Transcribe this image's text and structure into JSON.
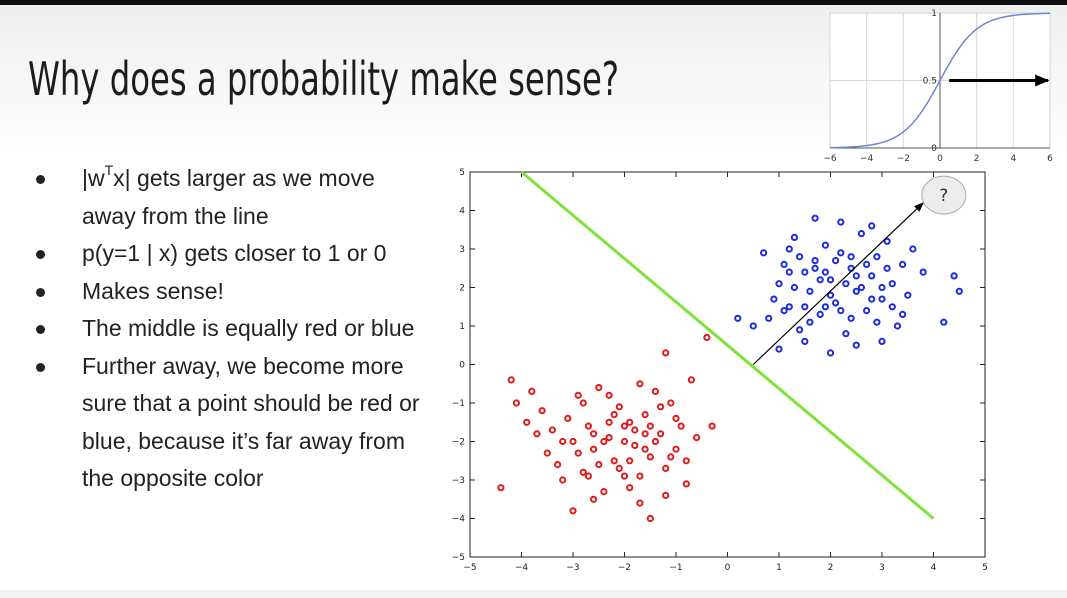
{
  "slide": {
    "title": "Why does a probability make sense?",
    "bullets": [
      {
        "pre": "|w",
        "sup": "T",
        "post": "x| gets larger as we move away from the line"
      },
      {
        "text": "p(y=1 | x) gets closer to 1 or 0"
      },
      {
        "text": "Makes sense!"
      },
      {
        "text": "The middle is equally red or blue"
      },
      {
        "text": "Further away, we become more sure that a point should be red or blue, because it’s far away from the opposite color"
      }
    ]
  },
  "chart_data": [
    {
      "type": "line",
      "x": [
        -6,
        -5,
        -4,
        -3,
        -2,
        -1.5,
        -1,
        -0.5,
        0,
        0.5,
        1,
        1.5,
        2,
        3,
        4,
        5,
        6
      ],
      "y": [
        0.0025,
        0.0067,
        0.018,
        0.047,
        0.119,
        0.182,
        0.269,
        0.378,
        0.5,
        0.622,
        0.731,
        0.818,
        0.881,
        0.953,
        0.982,
        0.993,
        0.9975
      ],
      "xlim": [
        -6,
        6
      ],
      "ylim": [
        0,
        1
      ],
      "xticks": [
        "−6",
        "−4",
        "−2",
        "0",
        "2",
        "4",
        "6"
      ],
      "yticks": [
        "0",
        "0.5",
        "1"
      ],
      "grid": true,
      "line_color": "#6f86d6",
      "annotation": {
        "type": "arrow",
        "from": [
          0.5,
          0.5
        ],
        "to": [
          5.9,
          0.5
        ],
        "color": "#000000"
      }
    },
    {
      "type": "scatter",
      "xlim": [
        -5,
        5
      ],
      "ylim": [
        -5,
        5
      ],
      "xticks": [
        "−5",
        "−4",
        "−3",
        "−2",
        "−1",
        "0",
        "1",
        "2",
        "3",
        "4",
        "5"
      ],
      "yticks": [
        "−5",
        "−4",
        "−3",
        "−2",
        "−1",
        "0",
        "1",
        "2",
        "3",
        "4",
        "5"
      ],
      "series": [
        {
          "color": "#1b2be0",
          "points": [
            [
              0.8,
              1.2
            ],
            [
              1.0,
              2.1
            ],
            [
              1.1,
              2.6
            ],
            [
              1.2,
              1.5
            ],
            [
              1.3,
              3.3
            ],
            [
              1.4,
              0.9
            ],
            [
              1.5,
              2.4
            ],
            [
              1.6,
              1.9
            ],
            [
              1.7,
              2.7
            ],
            [
              1.8,
              1.3
            ],
            [
              1.9,
              3.1
            ],
            [
              2.0,
              2.2
            ],
            [
              2.1,
              1.6
            ],
            [
              2.2,
              2.9
            ],
            [
              2.3,
              0.8
            ],
            [
              2.4,
              2.5
            ],
            [
              2.5,
              1.9
            ],
            [
              2.6,
              3.4
            ],
            [
              2.7,
              1.4
            ],
            [
              2.8,
              2.3
            ],
            [
              2.9,
              2.8
            ],
            [
              3.0,
              1.7
            ],
            [
              3.1,
              3.2
            ],
            [
              3.2,
              2.1
            ],
            [
              3.3,
              1.0
            ],
            [
              3.4,
              2.6
            ],
            [
              3.5,
              1.8
            ],
            [
              3.6,
              3.0
            ],
            [
              1.0,
              0.4
            ],
            [
              1.5,
              0.6
            ],
            [
              2.0,
              0.3
            ],
            [
              2.5,
              0.5
            ],
            [
              3.0,
              0.6
            ],
            [
              1.2,
              3.0
            ],
            [
              2.8,
              3.6
            ],
            [
              0.7,
              2.9
            ],
            [
              1.7,
              3.8
            ],
            [
              2.2,
              3.7
            ],
            [
              1.3,
              2.0
            ],
            [
              1.9,
              2.4
            ],
            [
              2.4,
              1.2
            ],
            [
              3.1,
              2.5
            ],
            [
              0.9,
              1.7
            ],
            [
              1.6,
              1.1
            ],
            [
              2.6,
              2.0
            ],
            [
              3.4,
              1.3
            ],
            [
              2.1,
              2.7
            ],
            [
              1.4,
              2.8
            ],
            [
              3.8,
              2.4
            ],
            [
              4.4,
              2.3
            ],
            [
              4.5,
              1.9
            ],
            [
              4.2,
              1.1
            ],
            [
              0.2,
              1.2
            ],
            [
              0.5,
              1.0
            ],
            [
              1.9,
              1.5
            ],
            [
              2.3,
              2.1
            ],
            [
              1.1,
              1.4
            ],
            [
              2.7,
              2.6
            ],
            [
              3.2,
              1.5
            ],
            [
              1.8,
              2.2
            ],
            [
              2.9,
              1.1
            ],
            [
              2.0,
              1.8
            ],
            [
              1.5,
              1.5
            ],
            [
              2.5,
              2.3
            ],
            [
              3.0,
              2.0
            ],
            [
              1.2,
              2.4
            ],
            [
              2.2,
              1.4
            ],
            [
              2.8,
              1.7
            ],
            [
              1.7,
              2.5
            ],
            [
              2.4,
              2.8
            ]
          ]
        },
        {
          "color": "#e01b1b",
          "points": [
            [
              -4.4,
              -3.2
            ],
            [
              -4.2,
              -0.4
            ],
            [
              -4.1,
              -1.0
            ],
            [
              -3.9,
              -1.5
            ],
            [
              -3.7,
              -1.8
            ],
            [
              -3.6,
              -1.2
            ],
            [
              -3.5,
              -2.3
            ],
            [
              -3.4,
              -1.7
            ],
            [
              -3.3,
              -2.6
            ],
            [
              -3.2,
              -3.0
            ],
            [
              -3.1,
              -1.4
            ],
            [
              -3.0,
              -2.0
            ],
            [
              -2.9,
              -0.8
            ],
            [
              -2.8,
              -2.8
            ],
            [
              -2.7,
              -1.6
            ],
            [
              -2.6,
              -2.2
            ],
            [
              -2.5,
              -0.6
            ],
            [
              -2.4,
              -3.3
            ],
            [
              -2.3,
              -1.9
            ],
            [
              -2.2,
              -2.5
            ],
            [
              -2.1,
              -1.1
            ],
            [
              -2.0,
              -2.9
            ],
            [
              -1.9,
              -1.5
            ],
            [
              -1.8,
              -2.1
            ],
            [
              -1.7,
              -3.6
            ],
            [
              -1.6,
              -1.3
            ],
            [
              -1.5,
              -2.4
            ],
            [
              -1.4,
              -0.7
            ],
            [
              -1.3,
              -1.8
            ],
            [
              -1.2,
              -2.7
            ],
            [
              -1.1,
              -1.0
            ],
            [
              -1.0,
              -2.2
            ],
            [
              -0.9,
              -1.6
            ],
            [
              -0.8,
              -3.1
            ],
            [
              -0.7,
              -0.4
            ],
            [
              -0.6,
              -1.9
            ],
            [
              -0.3,
              -1.6
            ],
            [
              -1.2,
              0.3
            ],
            [
              -1.5,
              -4.0
            ],
            [
              -3.0,
              -3.8
            ],
            [
              -2.6,
              -3.5
            ],
            [
              -1.9,
              -3.2
            ],
            [
              -1.2,
              -3.4
            ],
            [
              -0.8,
              -2.5
            ],
            [
              -1.4,
              -2.0
            ],
            [
              -2.0,
              -1.6
            ],
            [
              -2.5,
              -2.6
            ],
            [
              -3.2,
              -2.0
            ],
            [
              -2.2,
              -1.3
            ],
            [
              -1.7,
              -2.9
            ],
            [
              -1.0,
              -1.4
            ],
            [
              -2.8,
              -1.0
            ],
            [
              -2.4,
              -2.0
            ],
            [
              -1.6,
              -2.2
            ],
            [
              -2.9,
              -2.3
            ],
            [
              -1.3,
              -1.1
            ],
            [
              -2.1,
              -2.7
            ],
            [
              -1.8,
              -1.7
            ],
            [
              -2.7,
              -2.9
            ],
            [
              -1.5,
              -1.6
            ],
            [
              -0.4,
              0.7
            ],
            [
              -1.7,
              -0.5
            ],
            [
              -2.3,
              -0.8
            ],
            [
              -3.8,
              -0.7
            ],
            [
              -1.9,
              -2.5
            ],
            [
              -2.6,
              -1.8
            ],
            [
              -1.1,
              -2.4
            ],
            [
              -2.0,
              -2.0
            ],
            [
              -1.6,
              -1.8
            ],
            [
              -2.3,
              -1.5
            ]
          ]
        }
      ],
      "boundary": {
        "from": [
          -4,
          5
        ],
        "to": [
          4,
          -4
        ],
        "color": "#7ee23a"
      },
      "arrow": {
        "from": [
          0.5,
          0
        ],
        "to": [
          3.8,
          4.2
        ],
        "color": "#000000"
      },
      "callout": {
        "text": "?",
        "at": [
          4.2,
          4.4
        ]
      }
    }
  ]
}
